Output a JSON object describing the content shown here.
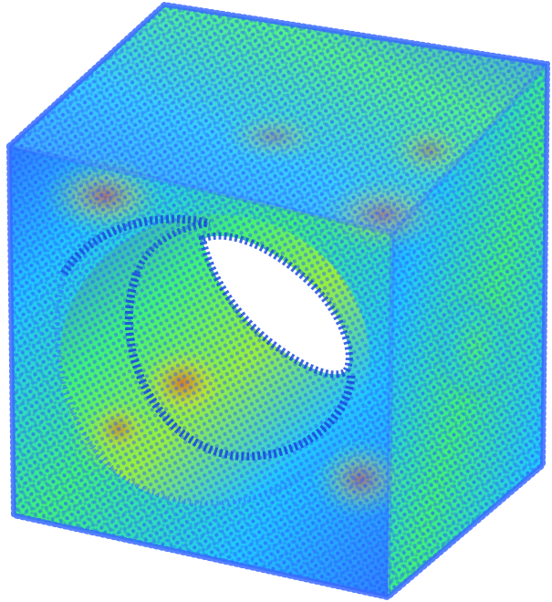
{
  "figure": {
    "subject": "point-cloud-cube-with-spherical-cavity",
    "colormap": [
      "#1f3fff",
      "#2f7fff",
      "#22c7ff",
      "#19e6b0",
      "#3ff27a",
      "#9cf03a",
      "#e0d82a",
      "#ff8c1a",
      "#ff3a12"
    ],
    "background_color": "#ffffff",
    "cavity_rim_color": "#1a4be0",
    "hole_fill_color": "#ffffff"
  }
}
